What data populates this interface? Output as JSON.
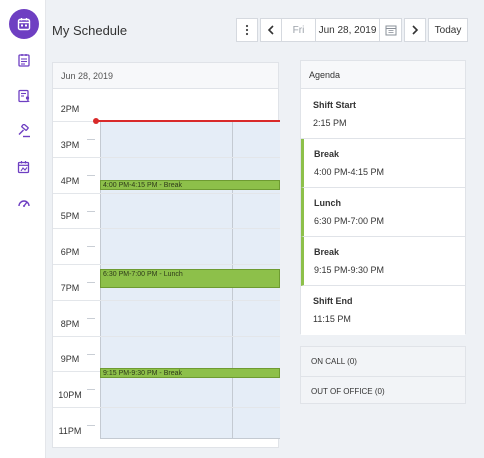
{
  "sidebar": {
    "items": [
      {
        "icon": "calendar-icon",
        "active": true
      },
      {
        "icon": "checklist-icon",
        "active": false
      },
      {
        "icon": "contacts-icon",
        "active": false
      },
      {
        "icon": "gavel-icon",
        "active": false
      },
      {
        "icon": "calendar-user-icon",
        "active": false
      },
      {
        "icon": "dashboard-icon",
        "active": false
      }
    ],
    "accent_color": "#6e3fc2"
  },
  "header": {
    "title": "My Schedule",
    "more_icon": "more-vertical-icon",
    "prev_icon": "chevron-left-icon",
    "day": "Fri",
    "date": "Jun 28, 2019",
    "calendar_icon": "calendar-icon",
    "next_icon": "chevron-right-icon",
    "today_label": "Today"
  },
  "calendar": {
    "date_header": "Jun 28, 2019",
    "hours": [
      "2PM",
      "3PM",
      "4PM",
      "5PM",
      "6PM",
      "7PM",
      "8PM",
      "9PM",
      "10PM",
      "11PM"
    ],
    "current_time": "2:15 PM",
    "events": [
      {
        "label": "4:00 PM-4:15 PM - Break",
        "start": "16:00",
        "end": "16:15"
      },
      {
        "label": "6:30 PM-7:00 PM - Lunch",
        "start": "18:30",
        "end": "19:00"
      },
      {
        "label": "9:15 PM-9:30 PM - Break",
        "start": "21:15",
        "end": "21:30"
      }
    ],
    "event_color": "#8dc04a",
    "now_color": "#d92a2a"
  },
  "agenda": {
    "header": "Agenda",
    "items": [
      {
        "title": "Shift Start",
        "time": "2:15 PM",
        "highlight": false
      },
      {
        "title": "Break",
        "time": "4:00 PM-4:15 PM",
        "highlight": true
      },
      {
        "title": "Lunch",
        "time": "6:30 PM-7:00 PM",
        "highlight": true
      },
      {
        "title": "Break",
        "time": "9:15 PM-9:30 PM",
        "highlight": true
      },
      {
        "title": "Shift End",
        "time": "11:15 PM",
        "highlight": false
      }
    ]
  },
  "status": {
    "on_call": "ON CALL (0)",
    "out_of_office": "OUT OF OFFICE (0)"
  }
}
